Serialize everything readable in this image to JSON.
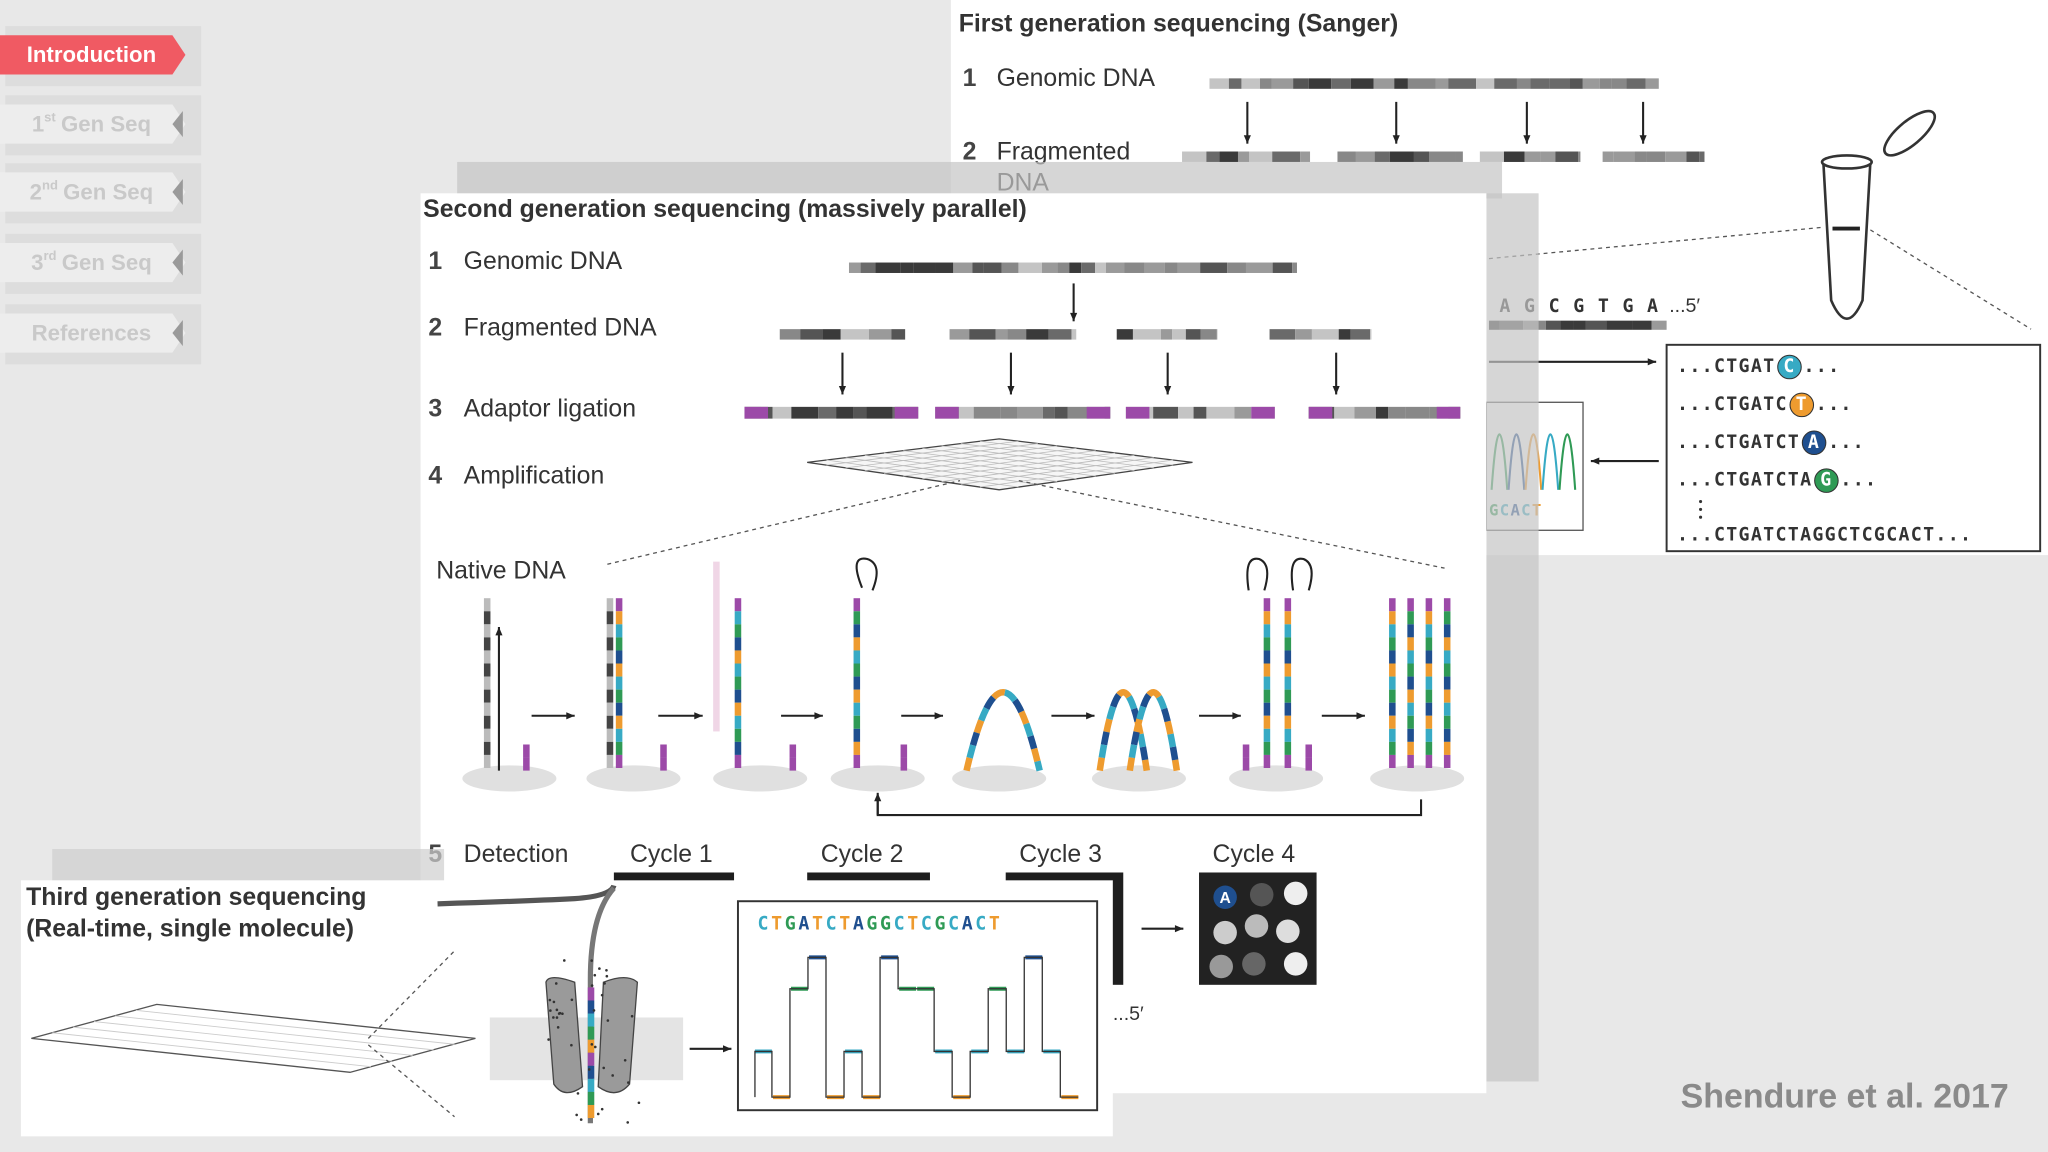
{
  "nav": [
    {
      "prefix": "Introduction",
      "sup": null,
      "text": null,
      "active": true
    },
    {
      "prefix": "1",
      "sup": "st",
      "text": "Gen Seq",
      "active": false
    },
    {
      "prefix": "2",
      "sup": "nd",
      "text": "Gen Seq",
      "active": false
    },
    {
      "prefix": "3",
      "sup": "rd",
      "text": "Gen Seq",
      "active": false
    },
    {
      "prefix": "References",
      "sup": null,
      "text": null,
      "active": false
    }
  ],
  "first_gen": {
    "title": "First generation sequencing (Sanger)",
    "steps": [
      {
        "number": "1",
        "label": "Genomic DNA"
      },
      {
        "number": "2",
        "label_lines": [
          "Fragmented",
          "DNA"
        ]
      }
    ],
    "template": "A G C G T G A",
    "template_end": "...5′",
    "chromatogram_read": "GCACT",
    "reads": [
      {
        "prefix": "...CTGAT",
        "base": "C",
        "suffix": "..."
      },
      {
        "prefix": "...CTGATC",
        "base": "T",
        "suffix": "..."
      },
      {
        "prefix": "...CTGATCT",
        "base": "A",
        "suffix": "..."
      },
      {
        "prefix": "...CTGATCTA",
        "base": "G",
        "suffix": "..."
      }
    ],
    "full_read": "...CTGATCTAGGCTCGCACT..."
  },
  "second_gen": {
    "title": "Second generation sequencing (massively parallel)",
    "steps": [
      {
        "number": "1",
        "label": "Genomic DNA"
      },
      {
        "number": "2",
        "label": "Fragmented DNA"
      },
      {
        "number": "3",
        "label": "Adaptor ligation"
      },
      {
        "number": "4",
        "label": "Amplification"
      }
    ],
    "native_label": "Native DNA",
    "detection": {
      "number": "5",
      "label": "Detection"
    },
    "cycles": [
      "Cycle 1",
      "Cycle 2",
      "Cycle 3",
      "Cycle 4"
    ],
    "cycle4_base": "A",
    "strand_end": "...5′"
  },
  "third_gen": {
    "title_lines": [
      "Third generation sequencing",
      "(Real-time, single molecule)"
    ],
    "read": "CTGATCTAGGCTCGCACT"
  },
  "citation": "Shendure et al. 2017"
}
